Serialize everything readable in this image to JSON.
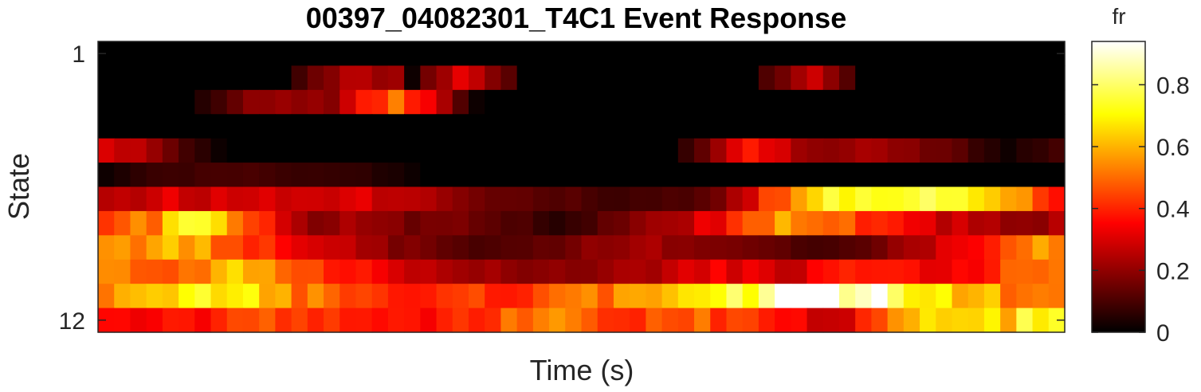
{
  "chart_data": {
    "type": "heatmap",
    "title": "00397_04082301_T4C1 Event Response",
    "xlabel": "Time (s)",
    "ylabel": "State",
    "y_tick_labels": [
      "1",
      "12"
    ],
    "y_tick_states": [
      1,
      12
    ],
    "x_tick_labels": [],
    "colormap": "hot",
    "colorbar": {
      "title": "fr",
      "range": [
        0,
        0.94
      ],
      "ticks": [
        0,
        0.2,
        0.4,
        0.6,
        0.8
      ],
      "tick_labels": [
        "0",
        "0.2",
        "0.4",
        "0.6",
        "0.8"
      ]
    },
    "n_time_bins": 60,
    "row_profiles": [
      [
        [
          0,
          0.0
        ],
        [
          59,
          0.0
        ]
      ],
      [
        [
          0,
          0.0
        ],
        [
          11,
          0.0
        ],
        [
          12,
          0.08
        ],
        [
          15,
          0.25
        ],
        [
          18,
          0.2
        ],
        [
          19,
          0.02
        ],
        [
          20,
          0.15
        ],
        [
          22,
          0.3
        ],
        [
          25,
          0.12
        ],
        [
          26,
          0.0
        ],
        [
          40,
          0.0
        ],
        [
          41,
          0.1
        ],
        [
          44,
          0.3
        ],
        [
          46,
          0.12
        ],
        [
          47,
          0.0
        ],
        [
          59,
          0.0
        ]
      ],
      [
        [
          0,
          0.0
        ],
        [
          5,
          0.0
        ],
        [
          6,
          0.05
        ],
        [
          9,
          0.18
        ],
        [
          14,
          0.2
        ],
        [
          16,
          0.35
        ],
        [
          18,
          0.5
        ],
        [
          20,
          0.38
        ],
        [
          22,
          0.1
        ],
        [
          23,
          0.02
        ],
        [
          24,
          0.0
        ],
        [
          59,
          0.0
        ]
      ],
      [
        [
          0,
          0.0
        ],
        [
          59,
          0.0
        ]
      ],
      [
        [
          0,
          0.28
        ],
        [
          3,
          0.22
        ],
        [
          5,
          0.1
        ],
        [
          7,
          0.02
        ],
        [
          8,
          0.0
        ],
        [
          35,
          0.0
        ],
        [
          36,
          0.08
        ],
        [
          38,
          0.2
        ],
        [
          40,
          0.35
        ],
        [
          42,
          0.28
        ],
        [
          44,
          0.2
        ],
        [
          48,
          0.22
        ],
        [
          52,
          0.15
        ],
        [
          54,
          0.08
        ],
        [
          56,
          0.02
        ],
        [
          57,
          0.05
        ],
        [
          59,
          0.1
        ]
      ],
      [
        [
          0,
          0.02
        ],
        [
          2,
          0.06
        ],
        [
          4,
          0.08
        ],
        [
          8,
          0.1
        ],
        [
          12,
          0.08
        ],
        [
          16,
          0.06
        ],
        [
          19,
          0.02
        ],
        [
          20,
          0.0
        ],
        [
          59,
          0.0
        ]
      ],
      [
        [
          0,
          0.25
        ],
        [
          4,
          0.3
        ],
        [
          8,
          0.28
        ],
        [
          12,
          0.32
        ],
        [
          16,
          0.3
        ],
        [
          20,
          0.25
        ],
        [
          24,
          0.15
        ],
        [
          28,
          0.12
        ],
        [
          32,
          0.08
        ],
        [
          36,
          0.1
        ],
        [
          38,
          0.15
        ],
        [
          40,
          0.3
        ],
        [
          42,
          0.5
        ],
        [
          45,
          0.7
        ],
        [
          48,
          0.75
        ],
        [
          51,
          0.82
        ],
        [
          54,
          0.75
        ],
        [
          57,
          0.5
        ],
        [
          59,
          0.4
        ]
      ],
      [
        [
          0,
          0.42
        ],
        [
          3,
          0.55
        ],
        [
          5,
          0.72
        ],
        [
          7,
          0.65
        ],
        [
          9,
          0.42
        ],
        [
          11,
          0.3
        ],
        [
          13,
          0.18
        ],
        [
          15,
          0.25
        ],
        [
          17,
          0.2
        ],
        [
          19,
          0.15
        ],
        [
          21,
          0.18
        ],
        [
          23,
          0.15
        ],
        [
          26,
          0.1
        ],
        [
          28,
          0.05
        ],
        [
          30,
          0.1
        ],
        [
          32,
          0.15
        ],
        [
          34,
          0.2
        ],
        [
          36,
          0.25
        ],
        [
          38,
          0.35
        ],
        [
          40,
          0.45
        ],
        [
          42,
          0.55
        ],
        [
          44,
          0.5
        ],
        [
          46,
          0.45
        ],
        [
          48,
          0.38
        ],
        [
          50,
          0.32
        ],
        [
          52,
          0.28
        ],
        [
          54,
          0.25
        ],
        [
          56,
          0.22
        ],
        [
          58,
          0.18
        ],
        [
          59,
          0.28
        ]
      ],
      [
        [
          0,
          0.55
        ],
        [
          3,
          0.58
        ],
        [
          6,
          0.55
        ],
        [
          8,
          0.48
        ],
        [
          10,
          0.42
        ],
        [
          12,
          0.35
        ],
        [
          14,
          0.28
        ],
        [
          16,
          0.22
        ],
        [
          18,
          0.18
        ],
        [
          20,
          0.15
        ],
        [
          22,
          0.12
        ],
        [
          24,
          0.1
        ],
        [
          26,
          0.12
        ],
        [
          28,
          0.15
        ],
        [
          30,
          0.18
        ],
        [
          32,
          0.2
        ],
        [
          34,
          0.22
        ],
        [
          36,
          0.2
        ],
        [
          38,
          0.18
        ],
        [
          40,
          0.15
        ],
        [
          42,
          0.12
        ],
        [
          44,
          0.1
        ],
        [
          46,
          0.12
        ],
        [
          48,
          0.15
        ],
        [
          50,
          0.22
        ],
        [
          52,
          0.3
        ],
        [
          54,
          0.38
        ],
        [
          56,
          0.45
        ],
        [
          58,
          0.55
        ],
        [
          59,
          0.52
        ]
      ],
      [
        [
          0,
          0.62
        ],
        [
          2,
          0.5
        ],
        [
          4,
          0.42
        ],
        [
          6,
          0.55
        ],
        [
          8,
          0.62
        ],
        [
          10,
          0.58
        ],
        [
          12,
          0.5
        ],
        [
          14,
          0.42
        ],
        [
          16,
          0.35
        ],
        [
          18,
          0.3
        ],
        [
          20,
          0.28
        ],
        [
          22,
          0.25
        ],
        [
          24,
          0.22
        ],
        [
          26,
          0.2
        ],
        [
          28,
          0.18
        ],
        [
          30,
          0.2
        ],
        [
          32,
          0.22
        ],
        [
          34,
          0.25
        ],
        [
          36,
          0.28
        ],
        [
          38,
          0.32
        ],
        [
          40,
          0.3
        ],
        [
          42,
          0.28
        ],
        [
          44,
          0.32
        ],
        [
          46,
          0.38
        ],
        [
          48,
          0.42
        ],
        [
          50,
          0.35
        ],
        [
          52,
          0.3
        ],
        [
          54,
          0.35
        ],
        [
          56,
          0.45
        ],
        [
          58,
          0.5
        ],
        [
          59,
          0.55
        ]
      ],
      [
        [
          0,
          0.5
        ],
        [
          2,
          0.58
        ],
        [
          4,
          0.62
        ],
        [
          6,
          0.68
        ],
        [
          8,
          0.72
        ],
        [
          10,
          0.6
        ],
        [
          12,
          0.52
        ],
        [
          14,
          0.48
        ],
        [
          16,
          0.45
        ],
        [
          18,
          0.42
        ],
        [
          20,
          0.38
        ],
        [
          22,
          0.4
        ],
        [
          24,
          0.42
        ],
        [
          26,
          0.45
        ],
        [
          28,
          0.48
        ],
        [
          30,
          0.5
        ],
        [
          32,
          0.55
        ],
        [
          34,
          0.6
        ],
        [
          36,
          0.66
        ],
        [
          38,
          0.72
        ],
        [
          40,
          0.78
        ],
        [
          42,
          0.85
        ],
        [
          44,
          0.9
        ],
        [
          45,
          0.94
        ],
        [
          46,
          0.92
        ],
        [
          48,
          0.85
        ],
        [
          50,
          0.75
        ],
        [
          52,
          0.7
        ],
        [
          54,
          0.62
        ],
        [
          56,
          0.55
        ],
        [
          58,
          0.52
        ],
        [
          59,
          0.5
        ]
      ],
      [
        [
          0,
          0.35
        ],
        [
          2,
          0.32
        ],
        [
          4,
          0.35
        ],
        [
          6,
          0.38
        ],
        [
          8,
          0.42
        ],
        [
          10,
          0.45
        ],
        [
          12,
          0.48
        ],
        [
          14,
          0.42
        ],
        [
          16,
          0.38
        ],
        [
          18,
          0.35
        ],
        [
          20,
          0.38
        ],
        [
          22,
          0.42
        ],
        [
          24,
          0.45
        ],
        [
          26,
          0.48
        ],
        [
          28,
          0.52
        ],
        [
          30,
          0.45
        ],
        [
          32,
          0.42
        ],
        [
          34,
          0.45
        ],
        [
          36,
          0.5
        ],
        [
          38,
          0.45
        ],
        [
          40,
          0.4
        ],
        [
          42,
          0.35
        ],
        [
          44,
          0.3
        ],
        [
          46,
          0.28
        ],
        [
          48,
          0.45
        ],
        [
          50,
          0.6
        ],
        [
          52,
          0.65
        ],
        [
          54,
          0.6
        ],
        [
          56,
          0.65
        ],
        [
          58,
          0.75
        ],
        [
          59,
          0.72
        ]
      ]
    ]
  }
}
